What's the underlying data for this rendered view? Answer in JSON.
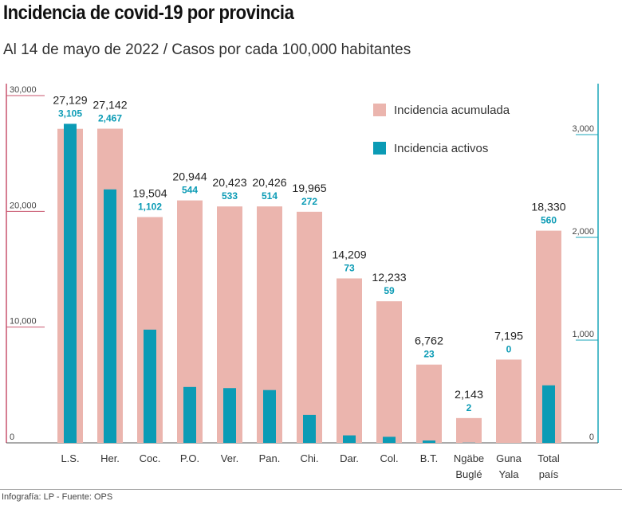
{
  "title": "Incidencia de covid-19 por provincia",
  "subtitle": "Al 14 de mayo de 2022 / Casos por cada 100,000 habitantes",
  "credit": "Infografía: LP - Fuente: OPS",
  "colors": {
    "acumulada": "#ebb5ae",
    "activos": "#0b9bb5",
    "left_axis": "#c8546e",
    "right_axis": "#1aa5b8"
  },
  "chart_data": {
    "type": "bar",
    "categories": [
      "L.S.",
      "Her.",
      "Coc.",
      "P.O.",
      "Ver.",
      "Pan.",
      "Chi.",
      "Dar.",
      "Col.",
      "B.T.",
      "Ngäbe Buglé",
      "Guna Yala",
      "Total país"
    ],
    "series": [
      {
        "name": "Incidencia acumulada",
        "axis": "left",
        "values": [
          27129,
          27142,
          19504,
          20944,
          20423,
          20426,
          19965,
          14209,
          12233,
          6762,
          2143,
          7195,
          18330
        ],
        "labels": [
          "27,129",
          "27,142",
          "19,504",
          "20,944",
          "20,423",
          "20,426",
          "19,965",
          "14,209",
          "12,233",
          "6,762",
          "2,143",
          "7,195",
          "18,330"
        ]
      },
      {
        "name": "Incidencia activos",
        "axis": "right",
        "values": [
          3105,
          2467,
          1102,
          544,
          533,
          514,
          272,
          73,
          59,
          23,
          2,
          0,
          560
        ],
        "labels": [
          "3,105",
          "2,467",
          "1,102",
          "544",
          "533",
          "514",
          "272",
          "73",
          "59",
          "23",
          "2",
          "0",
          "560"
        ]
      }
    ],
    "left_axis": {
      "ylim": [
        0,
        30000
      ],
      "ticks": [
        "0",
        "10,000",
        "20,000",
        "30,000"
      ],
      "tick_values": [
        0,
        10000,
        20000,
        30000
      ]
    },
    "right_axis": {
      "ylim": [
        0,
        3000
      ],
      "ticks": [
        "0",
        "1,000",
        "2,000",
        "3,000"
      ],
      "tick_values": [
        0,
        1000,
        2000,
        3000
      ]
    },
    "legend_position": "top-right",
    "grid": false
  }
}
